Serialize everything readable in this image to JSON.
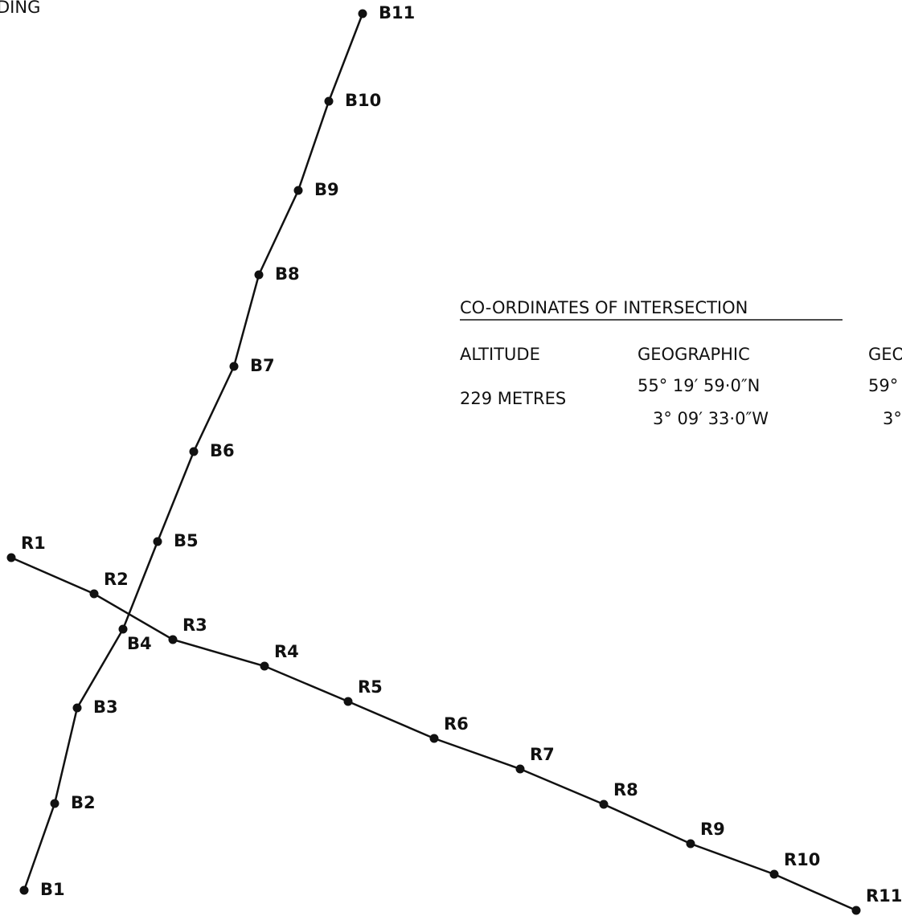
{
  "header_text": "DING",
  "intersection": {
    "title": "CO-ORDINATES OF INTERSECTION",
    "columns": [
      {
        "heading": "ALTITUDE",
        "lines": [
          "229 METRES"
        ]
      },
      {
        "heading": "GEOGRAPHIC",
        "lines": [
          "55° 19′ 59·0″N",
          "3° 09′ 33·0″W"
        ]
      },
      {
        "heading": "GEO",
        "lines": [
          "59°",
          "3°"
        ]
      }
    ]
  },
  "tracks": [
    {
      "points": [
        "B1",
        "B2",
        "B3",
        "B4",
        "B5",
        "B6",
        "B7",
        "B8",
        "B9",
        "B10",
        "B11"
      ]
    },
    {
      "points": [
        "R1",
        "R2",
        "R3",
        "R4",
        "R5",
        "R6",
        "R7",
        "R8",
        "R9",
        "R10",
        "R11"
      ]
    }
  ]
}
